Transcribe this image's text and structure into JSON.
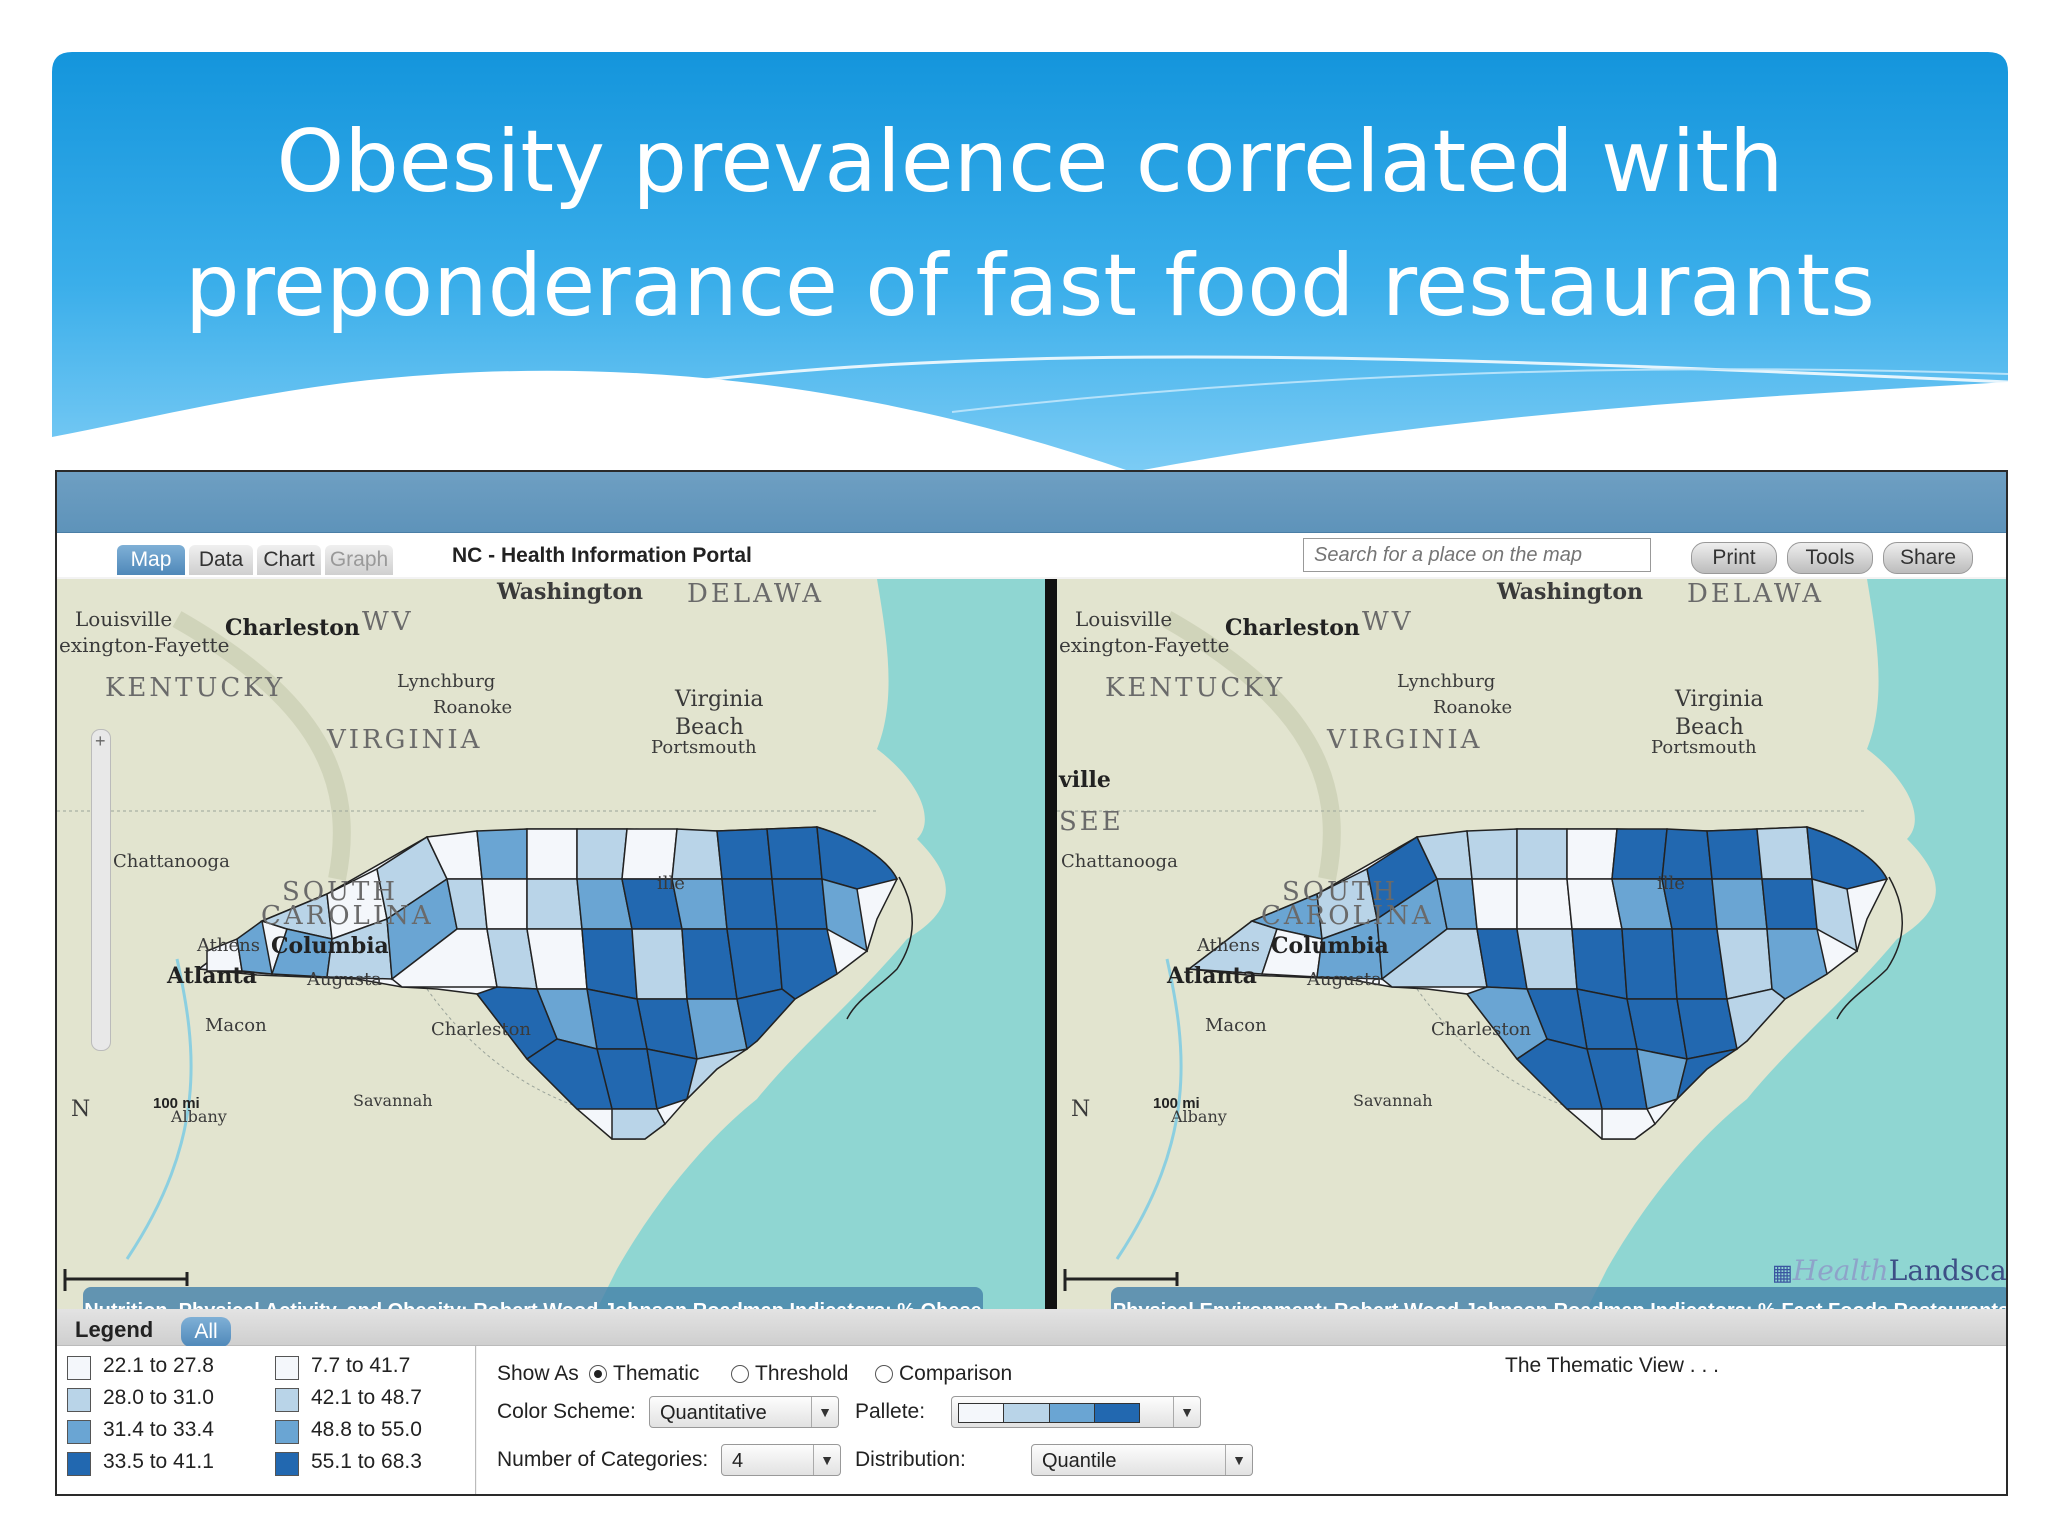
{
  "slide": {
    "title_line1": "Obesity prevalence correlated with",
    "title_line2": "preponderance of fast food restaurants"
  },
  "portal": {
    "tabs": [
      {
        "label": "Map",
        "state": "active"
      },
      {
        "label": "Data",
        "state": "normal"
      },
      {
        "label": "Chart",
        "state": "normal"
      },
      {
        "label": "Graph",
        "state": "disabled"
      }
    ],
    "title": "NC - Health Information Portal",
    "search_placeholder": "Search for a place on the map",
    "buttons": {
      "print": "Print",
      "tools": "Tools",
      "share": "Share"
    },
    "logo": {
      "health": "Health",
      "landscape": "Landscape"
    }
  },
  "map_labels": {
    "washington": "Washington",
    "delaware": "DELAWA",
    "louisville": "Louisville",
    "lexington": "exington-Fayette",
    "charleston_wv": "Charleston",
    "wv": "WV",
    "kentucky": "KENTUCKY",
    "lynchburg": "Lynchburg",
    "roanoke": "Roanoke",
    "virginia": "VIRGINIA",
    "virginia_beach1": "Virginia",
    "virginia_beach2": "Beach",
    "portsmouth": "Portsmouth",
    "ville": "ville",
    "see": "SEE",
    "chattanooga": "Chattanooga",
    "south": "SOUTH",
    "carolina": "CAROLINA",
    "athens": "Athens",
    "columbia": "Columbia",
    "atlanta": "Atlanta",
    "augusta": "Augusta",
    "macon": "Macon",
    "charleston_sc": "Charleston",
    "savannah": "Savannah",
    "albany": "Albany",
    "ille": "ille",
    "n": "N"
  },
  "maps": [
    {
      "id": "obese",
      "caption": "Nutrition, Physical Activity, and Obesity: Robert Wood Johnson Roadmap Indicators: % Obese",
      "scale": "100 mi"
    },
    {
      "id": "fastfood",
      "caption": "Physical Environment: Robert Wood Johnson Roadmap Indicators: % Fast Foods Restaurants",
      "scale": "100 mi"
    }
  ],
  "legend": {
    "title": "Legend",
    "all_label": "All",
    "palette": [
      "#f4f7fb",
      "#b9d4e8",
      "#6aa5d3",
      "#2268b0"
    ],
    "obese_ranges": [
      "22.1 to 27.8",
      "28.0 to 31.0",
      "31.4 to 33.4",
      "33.5 to 41.1"
    ],
    "fastfood_ranges": [
      "7.7 to 41.7",
      "42.1 to 48.7",
      "48.8 to 55.0",
      "55.1 to 68.3"
    ]
  },
  "controls": {
    "show_as_label": "Show As",
    "show_as_options": [
      "Thematic",
      "Threshold",
      "Comparison"
    ],
    "show_as_selected": "Thematic",
    "color_scheme_label": "Color Scheme:",
    "color_scheme_value": "Quantitative",
    "pallete_label": "Pallete:",
    "categories_label": "Number of Categories:",
    "categories_value": "4",
    "distribution_label": "Distribution:",
    "distribution_value": "Quantile",
    "view_text": "The Thematic View . . ."
  },
  "colors": {
    "header_blue": "#1a96dc",
    "water": "#8fd6d2",
    "land": "#e2e4cf",
    "caption_bg": "#4682aa"
  }
}
